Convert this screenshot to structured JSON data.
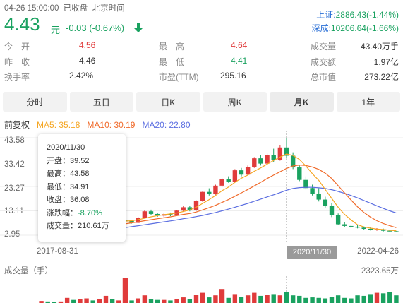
{
  "header": {
    "datetime": "04-26 15:00:00",
    "status": "已收盘",
    "tz": "北京时间",
    "price": "4.43",
    "unit": "元",
    "change": "-0.03 (-0.67%)",
    "arrow_icon": "down-arrow-icon",
    "indices": [
      {
        "label": "上证:",
        "value": "2886.43(-1.44%)"
      },
      {
        "label": "深成:",
        "value": "10206.64(-1.66%)"
      }
    ]
  },
  "stats": {
    "open_label": "今　开",
    "open": "4.56",
    "prev_label": "昨　收",
    "prev": "4.46",
    "turnover_label": "换手率",
    "turnover": "2.42%",
    "high_label": "最　高",
    "high": "4.64",
    "low_label": "最　低",
    "low": "4.41",
    "pe_label": "市盈(TTM)",
    "pe": "295.16",
    "vol_label": "成交量",
    "vol": "43.40万手",
    "amt_label": "成交额",
    "amt": "1.97亿",
    "cap_label": "总市值",
    "cap": "273.22亿"
  },
  "tabs": [
    "分时",
    "五日",
    "日K",
    "周K",
    "月K",
    "1年"
  ],
  "active_tab": "月K",
  "ma": {
    "adj": "前复权",
    "ma5": "MA5: 35.18",
    "ma10": "MA10: 30.19",
    "ma20": "MA20: 22.80"
  },
  "colors": {
    "up": "#e03b3b",
    "down": "#1aa260",
    "ma5": "#f5a623",
    "ma10": "#f06a2a",
    "ma20": "#5b6ee1"
  },
  "y_ticks": [
    "43.58",
    "33.42",
    "23.27",
    "13.11",
    "2.95"
  ],
  "x_ticks": {
    "start": "2017-08-31",
    "cursor": "2020/11/30",
    "end": "2022-04-26"
  },
  "tooltip": {
    "date": "2020/11/30",
    "open": "开盘：39.52",
    "high": "最高：43.58",
    "low": "最低：34.91",
    "close": "收盘：36.08",
    "chg_label": "涨跌幅：",
    "chg": "-8.70%",
    "vol": "成交量：210.61万"
  },
  "volume": {
    "label": "成交量（手）",
    "max": "2323.65万"
  },
  "chart_data": {
    "type": "candlestick",
    "ylim": [
      2.95,
      43.58
    ],
    "candles": [
      [
        3.2,
        3.9,
        3.0,
        3.6
      ],
      [
        3.6,
        4.0,
        3.3,
        3.5
      ],
      [
        3.5,
        3.8,
        3.1,
        3.3
      ],
      [
        3.3,
        4.3,
        3.2,
        4.1
      ],
      [
        4.1,
        5.8,
        4.0,
        5.5
      ],
      [
        5.5,
        6.0,
        4.8,
        5.0
      ],
      [
        5.0,
        6.5,
        4.9,
        6.2
      ],
      [
        6.2,
        7.5,
        6.0,
        7.2
      ],
      [
        7.2,
        7.6,
        6.3,
        6.6
      ],
      [
        6.6,
        7.8,
        6.5,
        7.5
      ],
      [
        7.5,
        9.8,
        7.3,
        9.5
      ],
      [
        9.5,
        10.2,
        8.4,
        8.8
      ],
      [
        8.8,
        9.4,
        8.2,
        9.1
      ],
      [
        9.1,
        10.0,
        8.6,
        8.9
      ],
      [
        8.9,
        9.2,
        7.8,
        8.1
      ],
      [
        8.1,
        10.5,
        8.0,
        10.3
      ],
      [
        10.3,
        13.2,
        10.1,
        12.9
      ],
      [
        12.9,
        13.6,
        11.4,
        11.8
      ],
      [
        11.8,
        12.3,
        10.6,
        11.1
      ],
      [
        11.1,
        12.0,
        10.5,
        11.7
      ],
      [
        11.7,
        12.4,
        10.9,
        11.2
      ],
      [
        11.2,
        13.5,
        11.0,
        13.2
      ],
      [
        13.2,
        15.0,
        12.8,
        14.6
      ],
      [
        14.6,
        15.3,
        12.9,
        13.3
      ],
      [
        13.3,
        17.5,
        13.1,
        17.1
      ],
      [
        17.1,
        21.5,
        16.8,
        21.0
      ],
      [
        21.0,
        22.5,
        19.5,
        20.1
      ],
      [
        20.1,
        24.0,
        19.8,
        23.6
      ],
      [
        23.6,
        26.8,
        23.0,
        26.2
      ],
      [
        26.2,
        27.5,
        24.8,
        25.3
      ],
      [
        25.3,
        30.5,
        25.0,
        30.0
      ],
      [
        30.0,
        31.0,
        27.5,
        28.2
      ],
      [
        28.2,
        32.0,
        27.8,
        31.5
      ],
      [
        31.5,
        35.5,
        31.0,
        35.0
      ],
      [
        35.0,
        36.5,
        32.0,
        32.8
      ],
      [
        32.8,
        37.0,
        32.5,
        36.4
      ],
      [
        36.4,
        39.0,
        33.5,
        34.2
      ],
      [
        34.2,
        40.5,
        34.0,
        39.52
      ],
      [
        39.52,
        43.58,
        34.91,
        36.08
      ],
      [
        36.08,
        37.5,
        30.5,
        31.2
      ],
      [
        31.2,
        32.0,
        25.5,
        26.0
      ],
      [
        26.0,
        27.5,
        22.0,
        22.6
      ],
      [
        22.6,
        24.0,
        19.5,
        20.3
      ],
      [
        20.3,
        22.5,
        17.0,
        17.8
      ],
      [
        17.8,
        19.0,
        14.5,
        15.1
      ],
      [
        15.1,
        16.5,
        10.5,
        11.2
      ],
      [
        11.2,
        12.0,
        7.2,
        7.5
      ],
      [
        7.5,
        8.5,
        6.3,
        6.8
      ],
      [
        6.8,
        7.4,
        6.0,
        6.5
      ],
      [
        6.5,
        7.2,
        5.8,
        6.1
      ],
      [
        6.1,
        6.6,
        5.3,
        5.6
      ],
      [
        5.6,
        6.2,
        4.9,
        5.2
      ],
      [
        5.2,
        5.9,
        4.8,
        5.4
      ],
      [
        5.4,
        5.7,
        4.5,
        4.8
      ],
      [
        4.8,
        5.3,
        4.3,
        4.6
      ],
      [
        4.6,
        4.64,
        4.41,
        4.43
      ]
    ],
    "ma5": [
      3.5,
      3.6,
      3.8,
      4.2,
      4.6,
      5.1,
      5.7,
      6.3,
      6.8,
      7.4,
      8.0,
      8.3,
      8.6,
      8.8,
      9.0,
      9.4,
      10.0,
      10.6,
      11.1,
      11.5,
      11.8,
      12.2,
      12.8,
      13.5,
      14.6,
      16.2,
      17.8,
      19.5,
      21.5,
      23.0,
      25.0,
      26.7,
      28.0,
      29.6,
      31.0,
      32.6,
      34.1,
      35.5,
      36.8,
      36.2,
      34.5,
      31.8,
      28.6,
      25.8,
      22.0,
      18.3,
      14.6,
      11.6,
      9.3,
      7.3,
      6.4,
      5.9,
      5.5,
      5.3,
      5.0,
      4.8
    ],
    "ma10": [
      3.4,
      3.5,
      3.6,
      3.8,
      4.0,
      4.3,
      4.6,
      5.0,
      5.4,
      5.9,
      6.4,
      6.8,
      7.3,
      7.7,
      8.1,
      8.5,
      9.0,
      9.4,
      9.8,
      10.2,
      10.6,
      11.1,
      11.6,
      12.0,
      12.6,
      13.5,
      14.4,
      15.4,
      16.6,
      17.8,
      19.2,
      20.6,
      22.0,
      23.5,
      25.0,
      26.6,
      28.0,
      29.4,
      30.8,
      31.8,
      32.2,
      32.0,
      31.4,
      30.4,
      28.8,
      26.6,
      23.6,
      20.6,
      17.6,
      14.8,
      12.4,
      10.5,
      9.0,
      7.8,
      6.9,
      6.1
    ],
    "ma20": [
      3.3,
      3.3,
      3.4,
      3.5,
      3.6,
      3.8,
      4.0,
      4.2,
      4.5,
      4.8,
      5.1,
      5.4,
      5.8,
      6.1,
      6.5,
      6.9,
      7.3,
      7.7,
      8.1,
      8.5,
      8.9,
      9.3,
      9.8,
      10.2,
      10.7,
      11.2,
      11.8,
      12.4,
      13.1,
      13.8,
      14.6,
      15.4,
      16.2,
      17.1,
      18.0,
      18.9,
      19.8,
      20.7,
      21.7,
      22.4,
      22.8,
      22.9,
      22.9,
      22.7,
      22.4,
      21.9,
      21.2,
      20.4,
      19.5,
      18.5,
      17.4,
      16.3,
      15.2,
      14.1,
      13.1,
      12.2
    ],
    "volumes": [
      0.08,
      0.06,
      0.05,
      0.06,
      0.2,
      0.12,
      0.15,
      0.18,
      0.1,
      0.14,
      0.28,
      0.15,
      0.1,
      0.12,
      0.1,
      0.18,
      0.3,
      0.16,
      0.12,
      0.12,
      0.1,
      0.14,
      0.22,
      0.15,
      0.32,
      0.4,
      0.22,
      0.3,
      0.38,
      0.2,
      0.35,
      0.25,
      0.3,
      0.4,
      0.28,
      0.32,
      0.35,
      0.3,
      0.42,
      0.3,
      0.28,
      0.2,
      0.22,
      0.2,
      0.18,
      0.25,
      0.3,
      0.2,
      0.18,
      0.3,
      0.28,
      0.35,
      0.4,
      0.38,
      0.42,
      0.3
    ],
    "volume_marks": [
      {
        "index": 13,
        "value": 1.0,
        "up": true
      },
      {
        "index": 28,
        "value": 0.55,
        "up": true
      }
    ]
  }
}
